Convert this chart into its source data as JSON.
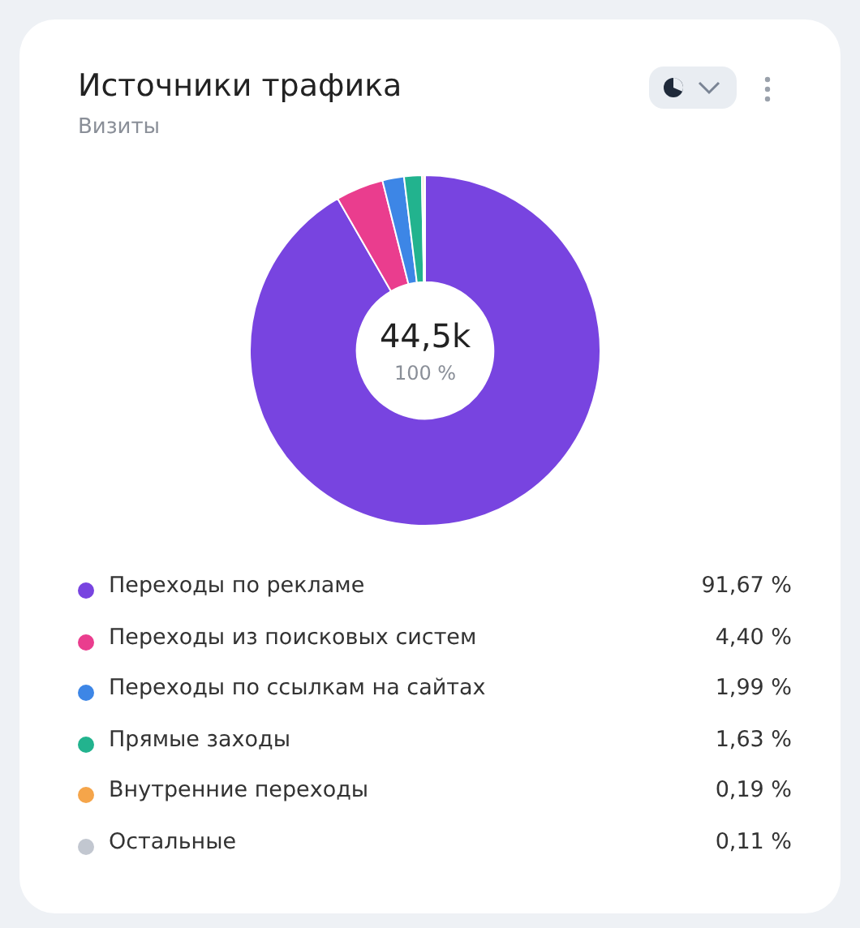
{
  "chart_data": {
    "type": "donut",
    "title": "Источники трафика",
    "subtitle": "Визиты",
    "categories": [
      "Переходы по рекламе",
      "Переходы из поисковых систем",
      "Переходы по ссылкам на сайтах",
      "Прямые заходы",
      "Внутренние переходы",
      "Остальные"
    ],
    "values": [
      91.67,
      4.4,
      1.99,
      1.63,
      0.19,
      0.11
    ],
    "value_labels": [
      "91,67 %",
      "4,40 %",
      "1,99 %",
      "1,63 %",
      "0,19 %",
      "0,11 %"
    ],
    "colors": [
      "#7844e0",
      "#ea3d8e",
      "#3d86e6",
      "#22b38e",
      "#f5a54a",
      "#c2c7d0"
    ],
    "annotations": [
      "44,5k",
      "100 %"
    ],
    "legend": "bottom"
  }
}
